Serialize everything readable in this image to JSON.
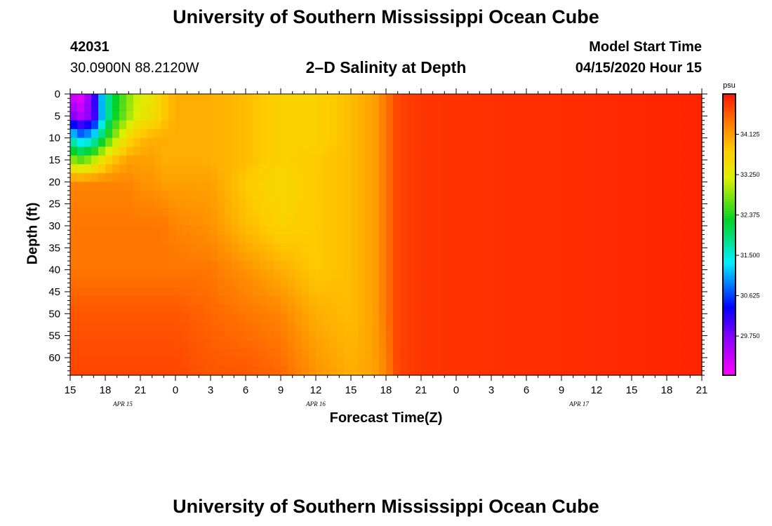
{
  "header": {
    "title": "University of Southern Mississippi Ocean Cube",
    "station_id": "42031",
    "station_coords": "30.0900N 88.2120W",
    "model_label": "Model Start Time",
    "model_time": "04/15/2020 Hour 15"
  },
  "footer": {
    "title": "University of Southern Mississippi Ocean Cube"
  },
  "chart_data": {
    "type": "heatmap",
    "title": "2–D Salinity at Depth",
    "xlabel": "Forecast Time(Z)",
    "ylabel": "Depth (ft)",
    "x_start_hour": 15,
    "x_end_hour": 69,
    "x_ticks": [
      {
        "hour": 15,
        "label": "15"
      },
      {
        "hour": 18,
        "label": "18"
      },
      {
        "hour": 21,
        "label": "21"
      },
      {
        "hour": 24,
        "label": "0"
      },
      {
        "hour": 27,
        "label": "3"
      },
      {
        "hour": 30,
        "label": "6"
      },
      {
        "hour": 33,
        "label": "9"
      },
      {
        "hour": 36,
        "label": "12"
      },
      {
        "hour": 39,
        "label": "15"
      },
      {
        "hour": 42,
        "label": "18"
      },
      {
        "hour": 45,
        "label": "21"
      },
      {
        "hour": 48,
        "label": "0"
      },
      {
        "hour": 51,
        "label": "3"
      },
      {
        "hour": 54,
        "label": "6"
      },
      {
        "hour": 57,
        "label": "9"
      },
      {
        "hour": 60,
        "label": "12"
      },
      {
        "hour": 63,
        "label": "15"
      },
      {
        "hour": 66,
        "label": "18"
      },
      {
        "hour": 69,
        "label": "21"
      }
    ],
    "date_labels": [
      {
        "hour": 19.5,
        "label": "APR 15"
      },
      {
        "hour": 36,
        "label": "APR 16"
      },
      {
        "hour": 58.5,
        "label": "APR 17"
      }
    ],
    "ylim": [
      0,
      64
    ],
    "y_ticks": [
      0,
      5,
      10,
      15,
      20,
      25,
      30,
      35,
      40,
      45,
      50,
      55,
      60
    ],
    "colorbar": {
      "unit": "psu",
      "min": 28.9,
      "max": 35.0,
      "tick_values": [
        29.75,
        30.625,
        31.5,
        32.375,
        33.25,
        34.125
      ],
      "tick_labels": [
        "29.750",
        "30.625",
        "31.500",
        "32.375",
        "33.250",
        "34.125"
      ]
    },
    "salinity_nodes_depth_ft": [
      0,
      5,
      10,
      15,
      20,
      30,
      40,
      50,
      64
    ],
    "salinity_grid": [
      {
        "hour": 15,
        "values": [
          29.2,
          29.8,
          31.6,
          32.9,
          34.3,
          34.4,
          34.4,
          34.6,
          34.7
        ]
      },
      {
        "hour": 16,
        "values": [
          29.0,
          29.4,
          31.0,
          32.6,
          34.3,
          34.4,
          34.4,
          34.6,
          34.7
        ]
      },
      {
        "hour": 17,
        "values": [
          30.0,
          29.9,
          31.4,
          33.0,
          34.3,
          34.4,
          34.4,
          34.6,
          34.7
        ]
      },
      {
        "hour": 18,
        "values": [
          31.6,
          31.6,
          32.3,
          33.6,
          34.3,
          34.4,
          34.4,
          34.6,
          34.7
        ]
      },
      {
        "hour": 19,
        "values": [
          32.3,
          32.4,
          33.0,
          33.9,
          34.3,
          34.4,
          34.4,
          34.6,
          34.7
        ]
      },
      {
        "hour": 20,
        "values": [
          32.8,
          32.9,
          33.6,
          34.1,
          34.3,
          34.4,
          34.4,
          34.6,
          34.7
        ]
      },
      {
        "hour": 21,
        "values": [
          33.2,
          33.3,
          33.9,
          34.1,
          34.2,
          34.4,
          34.4,
          34.6,
          34.7
        ]
      },
      {
        "hour": 22,
        "values": [
          33.4,
          33.5,
          34.0,
          34.1,
          34.2,
          34.4,
          34.4,
          34.6,
          34.7
        ]
      },
      {
        "hour": 23,
        "values": [
          33.8,
          33.8,
          34.0,
          34.0,
          34.1,
          34.4,
          34.4,
          34.6,
          34.7
        ]
      },
      {
        "hour": 24,
        "values": [
          34.0,
          34.0,
          34.0,
          34.0,
          34.1,
          34.3,
          34.4,
          34.6,
          34.7
        ]
      },
      {
        "hour": 27,
        "values": [
          34.0,
          34.0,
          34.0,
          34.0,
          34.1,
          34.2,
          34.4,
          34.5,
          34.6
        ]
      },
      {
        "hour": 30,
        "values": [
          33.9,
          33.9,
          33.9,
          33.9,
          33.8,
          33.9,
          34.2,
          34.4,
          34.6
        ]
      },
      {
        "hour": 33,
        "values": [
          33.7,
          33.7,
          33.7,
          33.7,
          33.6,
          33.7,
          34.0,
          34.3,
          34.5
        ]
      },
      {
        "hour": 36,
        "values": [
          33.7,
          33.7,
          33.7,
          33.8,
          33.8,
          33.8,
          33.8,
          34.0,
          34.2
        ]
      },
      {
        "hour": 39,
        "values": [
          33.9,
          33.9,
          33.9,
          33.9,
          33.9,
          33.9,
          33.9,
          33.9,
          34.0
        ]
      },
      {
        "hour": 41,
        "values": [
          34.1,
          34.1,
          34.1,
          34.1,
          34.1,
          34.1,
          34.1,
          34.1,
          34.1
        ]
      },
      {
        "hour": 42,
        "values": [
          34.4,
          34.4,
          34.4,
          34.4,
          34.4,
          34.4,
          34.4,
          34.4,
          34.3
        ]
      },
      {
        "hour": 43,
        "values": [
          34.7,
          34.7,
          34.7,
          34.7,
          34.7,
          34.7,
          34.7,
          34.7,
          34.7
        ]
      },
      {
        "hour": 45,
        "values": [
          34.8,
          34.8,
          34.8,
          34.8,
          34.8,
          34.8,
          34.8,
          34.8,
          34.8
        ]
      },
      {
        "hour": 69,
        "values": [
          34.9,
          34.9,
          34.9,
          34.9,
          34.9,
          34.9,
          34.9,
          34.9,
          34.9
        ]
      }
    ]
  }
}
